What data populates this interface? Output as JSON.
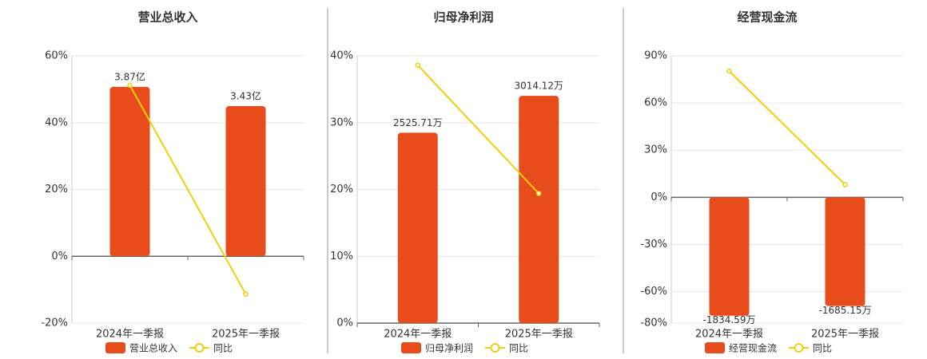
{
  "chart_data": [
    {
      "type": "combo",
      "title": "营业总收入",
      "categories": [
        "2024年一季报",
        "2025年一季报"
      ],
      "series": [
        {
          "name": "营业总收入",
          "type": "bar",
          "axis": "y2",
          "color": "#e84c1a",
          "values": [
            3.87,
            3.43
          ],
          "value_labels": [
            "3.87亿",
            "3.43亿"
          ]
        },
        {
          "name": "同比",
          "type": "line",
          "color": "#f2cf0c",
          "values": [
            51.2,
            -11.3
          ]
        }
      ],
      "ylim": [
        -20,
        60
      ],
      "yticks": [
        {
          "value": -20,
          "label": "-20%"
        },
        {
          "value": 0,
          "label": "0%"
        },
        {
          "value": 20,
          "label": "20%"
        },
        {
          "value": 40,
          "label": "40%"
        },
        {
          "value": 60,
          "label": "60%"
        }
      ],
      "y2lim": [
        -1.53,
        4.58
      ],
      "grid": true
    },
    {
      "type": "combo",
      "title": "归母净利润",
      "categories": [
        "2024年一季报",
        "2025年一季报"
      ],
      "series": [
        {
          "name": "归母净利润",
          "type": "bar",
          "axis": "y2",
          "color": "#e84c1a",
          "values": [
            2525.71,
            3014.12
          ],
          "value_labels": [
            "2525.71万",
            "3014.12万"
          ]
        },
        {
          "name": "同比",
          "type": "line",
          "color": "#f2cf0c",
          "values": [
            38.6,
            19.4
          ]
        }
      ],
      "ylim": [
        0,
        40
      ],
      "yticks": [
        {
          "value": 0,
          "label": "0%"
        },
        {
          "value": 10,
          "label": "10%"
        },
        {
          "value": 20,
          "label": "20%"
        },
        {
          "value": 30,
          "label": "30%"
        },
        {
          "value": 40,
          "label": "40%"
        }
      ],
      "y2lim": [
        0,
        3545
      ],
      "grid": true
    },
    {
      "type": "combo",
      "title": "经营现金流",
      "categories": [
        "2024年一季报",
        "2025年一季报"
      ],
      "series": [
        {
          "name": "经营现金流",
          "type": "bar",
          "axis": "y2",
          "color": "#e84c1a",
          "values": [
            -1834.59,
            -1685.15
          ],
          "value_labels": [
            "-1834.59万",
            "-1685.15万"
          ]
        },
        {
          "name": "同比",
          "type": "line",
          "color": "#f2cf0c",
          "values": [
            80.3,
            8.1
          ]
        }
      ],
      "ylim": [
        -80,
        90
      ],
      "yticks": [
        {
          "value": -80,
          "label": "-80%"
        },
        {
          "value": -60,
          "label": "-60%"
        },
        {
          "value": -30,
          "label": "-30%"
        },
        {
          "value": 0,
          "label": "0%"
        },
        {
          "value": 30,
          "label": "30%"
        },
        {
          "value": 60,
          "label": "60%"
        },
        {
          "value": 90,
          "label": "90%"
        }
      ],
      "y2lim": [
        -1949,
        2193
      ],
      "grid": true
    }
  ]
}
